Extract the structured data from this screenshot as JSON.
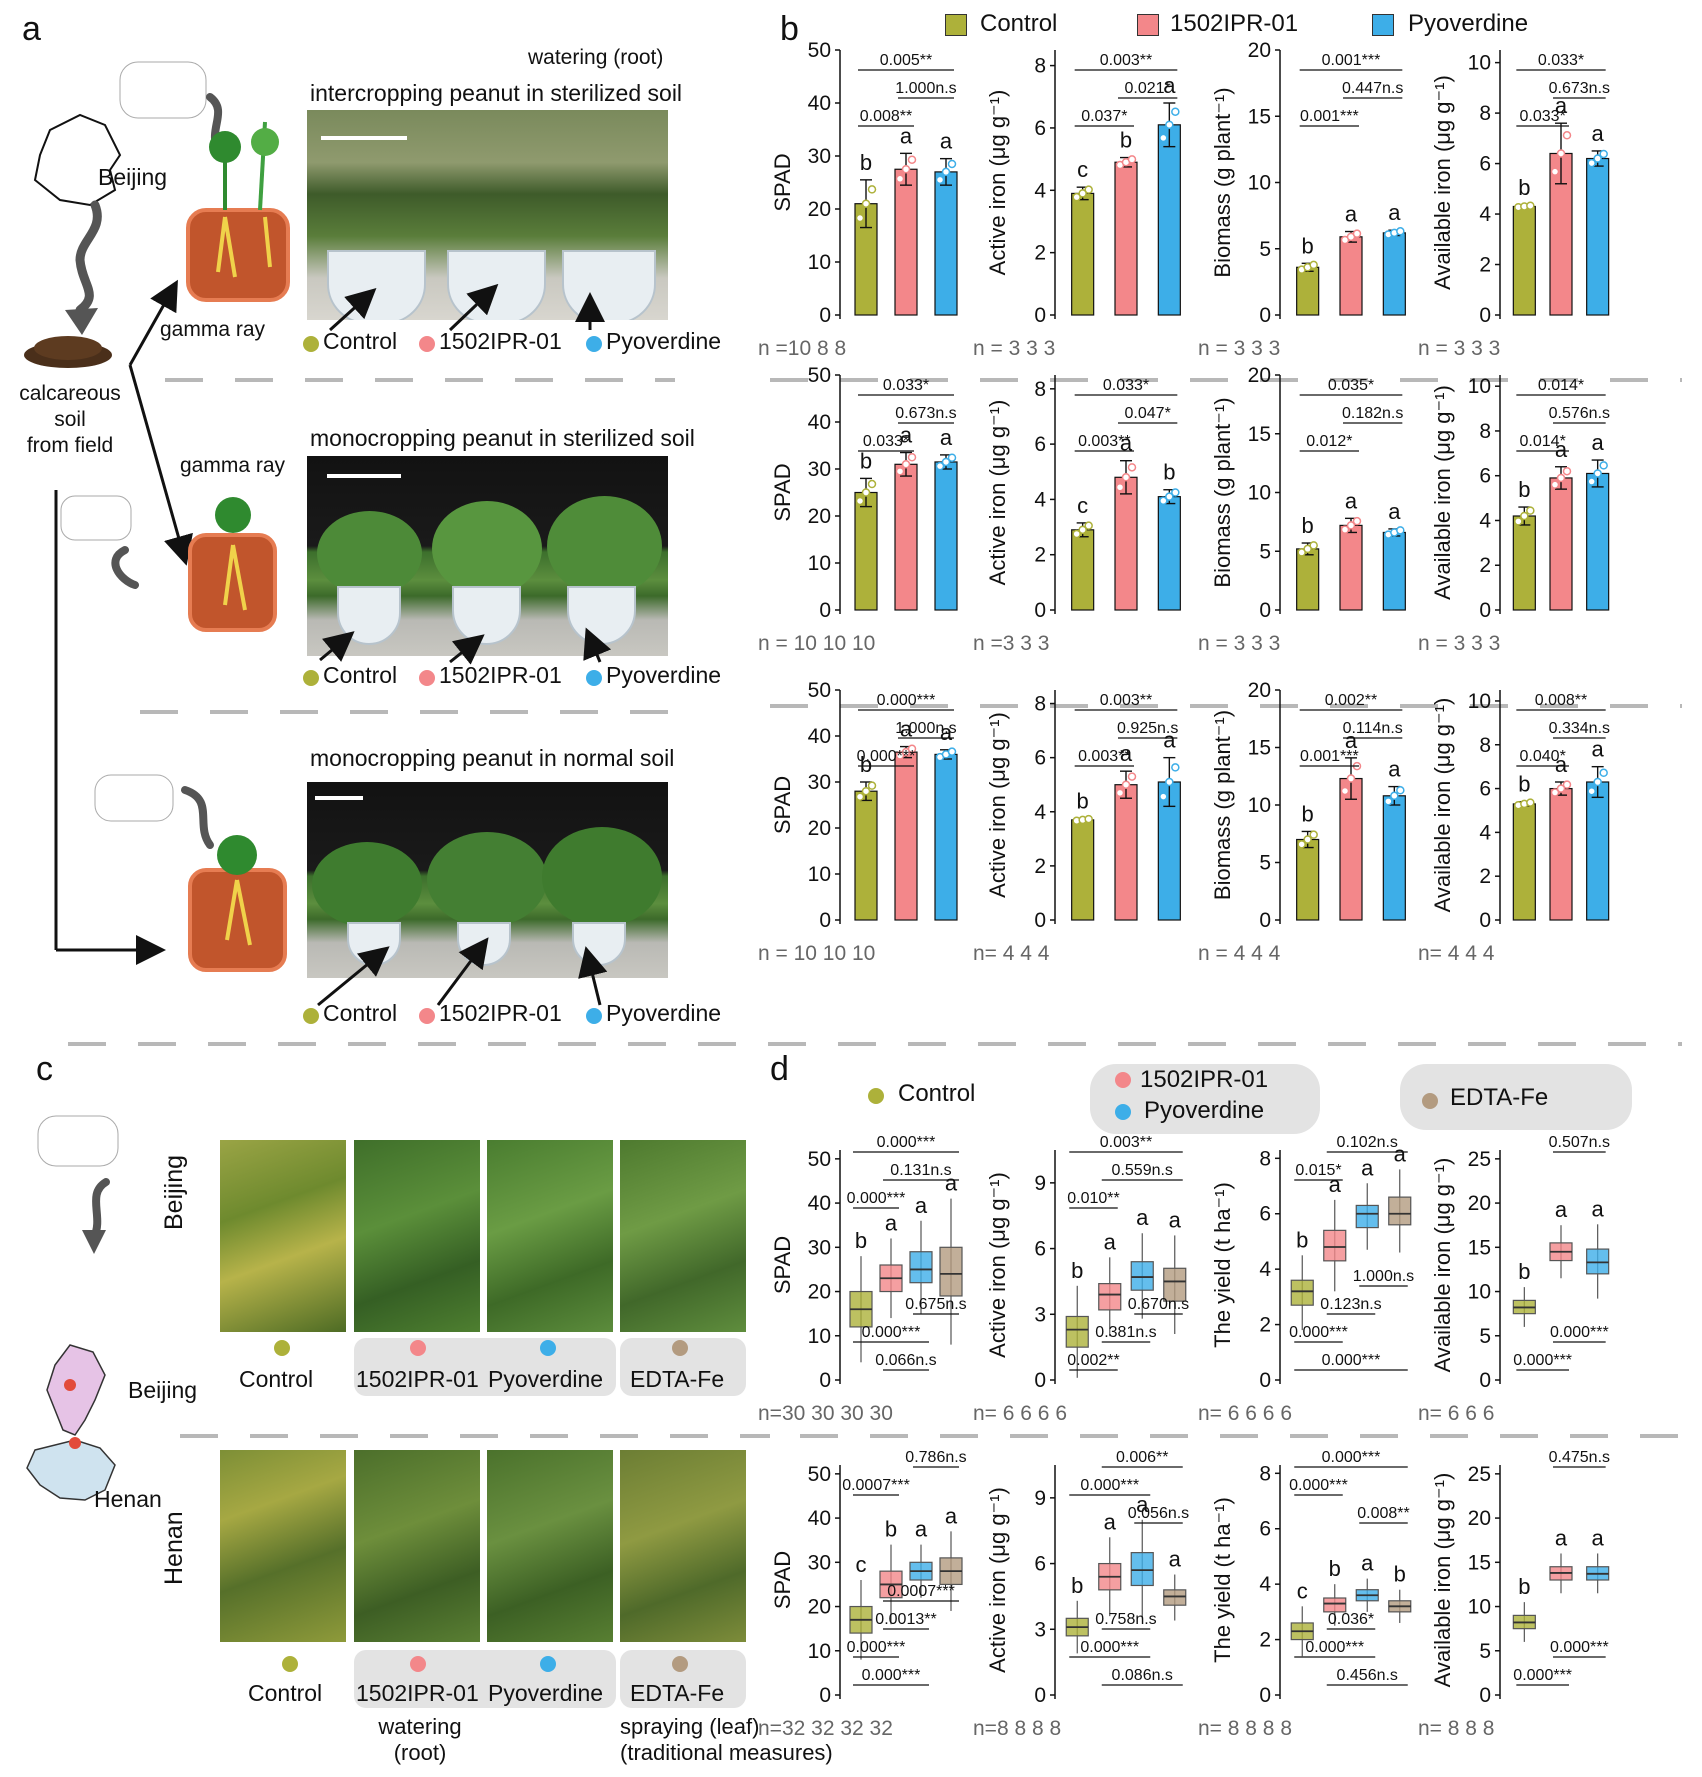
{
  "panel_labels": {
    "a": "a",
    "b": "b",
    "c": "c",
    "d": "d"
  },
  "colors": {
    "control": "#adb13a",
    "ipr": "#f3878a",
    "pyo": "#3daee8",
    "edta": "#b39b80",
    "soil": "#c1552c",
    "pot_border": "#e67c52"
  },
  "panel_a": {
    "watering_root": "watering (root)",
    "beijing": "Beijing",
    "calcareous": [
      "calcareous",
      "soil",
      "from field"
    ],
    "gamma_ray_1": "gamma ray",
    "gamma_ray_2": "gamma ray",
    "row1_title": "intercropping peanut in sterilized  soil",
    "row2_title": "monocropping peanut in sterilized soil",
    "row3_title": "monocropping peanut in normal soil",
    "labels": {
      "control": "Control",
      "ipr": "1502IPR-01",
      "pyo": "Pyoverdine"
    }
  },
  "panel_b_legend": {
    "control": "Control",
    "ipr": "1502IPR-01",
    "pyo": "Pyoverdine"
  },
  "panel_c": {
    "beijing_row": "Beijing",
    "henan_row": "Henan",
    "map_beijing": "Beijing",
    "map_henan": "Henan",
    "labels": {
      "control": "Control",
      "ipr": "1502IPR-01",
      "pyo": "Pyoverdine",
      "edta": "EDTA-Fe"
    },
    "watering_root": [
      "watering",
      "(root)"
    ],
    "spraying": [
      "spraying (leaf)",
      "(traditional measures)"
    ]
  },
  "panel_d_legend": {
    "control": "Control",
    "ipr": "1502IPR-01",
    "pyo": "Pyoverdine",
    "edta": "EDTA-Fe"
  },
  "chart_data": [
    {
      "id": "b11",
      "type": "bar",
      "ylabel": "SPAD",
      "ticks": [
        0,
        10,
        20,
        30,
        40,
        50
      ],
      "ylim": [
        0,
        50
      ],
      "values": [
        21,
        27.5,
        27
      ],
      "err": [
        4.5,
        3,
        2.5
      ],
      "letters": [
        "b",
        "a",
        "a"
      ],
      "n": "n =10   8    8",
      "pvals": [
        {
          "t": "0.005**",
          "a": 0,
          "b": 2
        },
        {
          "t": "1.000n.s",
          "a": 1,
          "b": 2
        },
        {
          "t": "0.008**",
          "a": 0,
          "b": 1
        }
      ]
    },
    {
      "id": "b12",
      "type": "bar",
      "ylabel": "Active iron (μg g⁻¹)",
      "ticks": [
        0,
        2,
        4,
        6,
        8
      ],
      "ylim": [
        0,
        8.5
      ],
      "values": [
        3.9,
        4.9,
        6.1
      ],
      "err": [
        0.2,
        0.15,
        0.7
      ],
      "letters": [
        "c",
        "b",
        "a"
      ],
      "n": "n = 3    3    3",
      "pvals": [
        {
          "t": "0.003**",
          "a": 0,
          "b": 2
        },
        {
          "t": "0.021*",
          "a": 1,
          "b": 2
        },
        {
          "t": "0.037*",
          "a": 0,
          "b": 1
        }
      ]
    },
    {
      "id": "b13",
      "type": "bar",
      "ylabel": "Biomass (g plant⁻¹)",
      "ticks": [
        0,
        5,
        10,
        15,
        20
      ],
      "ylim": [
        0,
        20
      ],
      "values": [
        3.6,
        5.9,
        6.2
      ],
      "err": [
        0.3,
        0.4,
        0.2
      ],
      "letters": [
        "b",
        "a",
        "a"
      ],
      "n": "n =  3    3    3",
      "pvals": [
        {
          "t": "0.001***",
          "a": 0,
          "b": 2
        },
        {
          "t": "0.447n.s",
          "a": 1,
          "b": 2
        },
        {
          "t": "0.001***",
          "a": 0,
          "b": 1
        }
      ]
    },
    {
      "id": "b14",
      "type": "bar",
      "ylabel": "Available iron (μg g⁻¹)",
      "ticks": [
        0,
        2,
        4,
        6,
        8,
        10
      ],
      "ylim": [
        0,
        10.5
      ],
      "values": [
        4.3,
        6.4,
        6.2
      ],
      "err": [
        0.05,
        1.2,
        0.3
      ],
      "letters": [
        "b",
        "a",
        "a"
      ],
      "n": "n = 3    3    3",
      "pvals": [
        {
          "t": "0.033*",
          "a": 0,
          "b": 2
        },
        {
          "t": "0.673n.s",
          "a": 1,
          "b": 2
        },
        {
          "t": "0.033*",
          "a": 0,
          "b": 1
        }
      ]
    },
    {
      "id": "b21",
      "type": "bar",
      "ylabel": "SPAD",
      "ticks": [
        0,
        10,
        20,
        30,
        40,
        50
      ],
      "ylim": [
        0,
        50
      ],
      "values": [
        25,
        31,
        31.5
      ],
      "err": [
        3,
        2.5,
        1.5
      ],
      "letters": [
        "b",
        "a",
        "a"
      ],
      "n": "n = 10  10  10",
      "pvals": [
        {
          "t": "0.033*",
          "a": 0,
          "b": 2
        },
        {
          "t": "0.673n.s",
          "a": 1,
          "b": 2
        },
        {
          "t": "0.033*",
          "a": 0,
          "b": 1
        }
      ]
    },
    {
      "id": "b22",
      "type": "bar",
      "ylabel": "Active iron (μg g⁻¹)",
      "ticks": [
        0,
        2,
        4,
        6,
        8
      ],
      "ylim": [
        0,
        8.5
      ],
      "values": [
        2.9,
        4.8,
        4.1
      ],
      "err": [
        0.25,
        0.6,
        0.25
      ],
      "letters": [
        "c",
        "a",
        "b"
      ],
      "n": "n =3     3     3",
      "pvals": [
        {
          "t": "0.033*",
          "a": 0,
          "b": 2
        },
        {
          "t": "0.047*",
          "a": 1,
          "b": 2
        },
        {
          "t": "0.003**",
          "a": 0,
          "b": 1
        }
      ]
    },
    {
      "id": "b23",
      "type": "bar",
      "ylabel": "Biomass (g plant⁻¹)",
      "ticks": [
        0,
        5,
        10,
        15,
        20
      ],
      "ylim": [
        0,
        20
      ],
      "values": [
        5.2,
        7.2,
        6.6
      ],
      "err": [
        0.5,
        0.6,
        0.3
      ],
      "letters": [
        "b",
        "a",
        "a"
      ],
      "n": "n =   3    3    3",
      "pvals": [
        {
          "t": "0.035*",
          "a": 0,
          "b": 2
        },
        {
          "t": "0.182n.s",
          "a": 1,
          "b": 2
        },
        {
          "t": "0.012*",
          "a": 0,
          "b": 1
        }
      ]
    },
    {
      "id": "b24",
      "type": "bar",
      "ylabel": "Available iron (μg g⁻¹)",
      "ticks": [
        0,
        2,
        4,
        6,
        8,
        10
      ],
      "ylim": [
        0,
        10.5
      ],
      "values": [
        4.2,
        5.9,
        6.1
      ],
      "err": [
        0.4,
        0.5,
        0.6
      ],
      "letters": [
        "b",
        "a",
        "a"
      ],
      "n": "n = 3    3    3",
      "pvals": [
        {
          "t": "0.014*",
          "a": 0,
          "b": 2
        },
        {
          "t": "0.576n.s",
          "a": 1,
          "b": 2
        },
        {
          "t": "0.014*",
          "a": 0,
          "b": 1
        }
      ]
    },
    {
      "id": "b31",
      "type": "bar",
      "ylabel": "SPAD",
      "ticks": [
        0,
        10,
        20,
        30,
        40,
        50
      ],
      "ylim": [
        0,
        50
      ],
      "values": [
        28,
        36.5,
        36
      ],
      "err": [
        2,
        1.2,
        1
      ],
      "letters": [
        "b",
        "a",
        "a"
      ],
      "n": "n = 10  10  10",
      "pvals": [
        {
          "t": "0.000***",
          "a": 0,
          "b": 2
        },
        {
          "t": "1.000n.s",
          "a": 1,
          "b": 2
        },
        {
          "t": "0.000***",
          "a": 0,
          "b": 1
        }
      ]
    },
    {
      "id": "b32",
      "type": "bar",
      "ylabel": "Active iron (μg g⁻¹)",
      "ticks": [
        0,
        2,
        4,
        6,
        8
      ],
      "ylim": [
        0,
        8.5
      ],
      "values": [
        3.7,
        5,
        5.1
      ],
      "err": [
        0.05,
        0.5,
        0.9
      ],
      "letters": [
        "b",
        "a",
        "a"
      ],
      "n": "n=  4    4    4",
      "pvals": [
        {
          "t": "0.003**",
          "a": 0,
          "b": 2
        },
        {
          "t": "0.925n.s",
          "a": 1,
          "b": 2
        },
        {
          "t": "0.003**",
          "a": 0,
          "b": 1
        }
      ]
    },
    {
      "id": "b33",
      "type": "bar",
      "ylabel": "Biomass (g plant⁻¹)",
      "ticks": [
        0,
        5,
        10,
        15,
        20
      ],
      "ylim": [
        0,
        20
      ],
      "values": [
        7,
        12.3,
        10.8
      ],
      "err": [
        0.7,
        1.8,
        0.8
      ],
      "letters": [
        "b",
        "a",
        "a"
      ],
      "n": "n =  4    4    4",
      "pvals": [
        {
          "t": "0.002**",
          "a": 0,
          "b": 2
        },
        {
          "t": "0.114n.s",
          "a": 1,
          "b": 2
        },
        {
          "t": "0.001***",
          "a": 0,
          "b": 1
        }
      ]
    },
    {
      "id": "b34",
      "type": "bar",
      "ylabel": "Available iron (μg g⁻¹)",
      "ticks": [
        0,
        2,
        4,
        6,
        8,
        10
      ],
      "ylim": [
        0,
        10.5
      ],
      "values": [
        5.3,
        6,
        6.3
      ],
      "err": [
        0.1,
        0.3,
        0.7
      ],
      "letters": [
        "b",
        "a",
        "a"
      ],
      "n": "n= 4    4    4",
      "pvals": [
        {
          "t": "0.008**",
          "a": 0,
          "b": 2
        },
        {
          "t": "0.334n.s",
          "a": 1,
          "b": 2
        },
        {
          "t": "0.040*",
          "a": 0,
          "b": 1
        }
      ]
    },
    {
      "id": "d11",
      "type": "box",
      "ylabel": "SPAD",
      "ticks": [
        0,
        10,
        20,
        30,
        40,
        50
      ],
      "ylim": [
        0,
        52
      ],
      "n": "n=30  30  30  30",
      "boxes": [
        {
          "q1": 12,
          "med": 16,
          "q3": 20
        },
        {
          "q1": 20,
          "med": 23,
          "q3": 26
        },
        {
          "q1": 22,
          "med": 25,
          "q3": 29
        },
        {
          "q1": 19,
          "med": 24,
          "q3": 30
        }
      ],
      "letters": [
        "b",
        "a",
        "a",
        "a"
      ],
      "top": [
        {
          "t": "0.000***",
          "a": 0,
          "b": 3
        },
        {
          "t": "0.131n.s",
          "a": 1,
          "b": 3
        },
        {
          "t": "0.000***",
          "a": 0,
          "b": 1
        }
      ],
      "bottom": [
        {
          "t": "0.675n.s",
          "a": 2,
          "b": 3
        },
        {
          "t": "0.000***",
          "a": 0,
          "b": 2
        },
        {
          "t": "0.066n.s",
          "a": 1,
          "b": 2
        }
      ]
    },
    {
      "id": "d12",
      "type": "box",
      "ylabel": "Active iron (μg g⁻¹)",
      "ticks": [
        0,
        3,
        6,
        9
      ],
      "ylim": [
        0,
        10.5
      ],
      "n": "n=  6    6    6    6",
      "boxes": [
        {
          "q1": 1.5,
          "med": 2.3,
          "q3": 2.9
        },
        {
          "q1": 3.2,
          "med": 3.9,
          "q3": 4.4
        },
        {
          "q1": 4.1,
          "med": 4.7,
          "q3": 5.4
        },
        {
          "q1": 3.6,
          "med": 4.5,
          "q3": 5.1
        }
      ],
      "letters": [
        "b",
        "a",
        "a",
        "a"
      ],
      "top": [
        {
          "t": "0.003**",
          "a": 0,
          "b": 3
        },
        {
          "t": "0.559n.s",
          "a": 1,
          "b": 3
        },
        {
          "t": "0.010**",
          "a": 0,
          "b": 1
        }
      ],
      "bottom": [
        {
          "t": "0.670n.s",
          "a": 2,
          "b": 3
        },
        {
          "t": "0.381n.s",
          "a": 1,
          "b": 2
        },
        {
          "t": "0.002**",
          "a": 0,
          "b": 1
        }
      ]
    },
    {
      "id": "d13",
      "type": "box",
      "ylabel": "The yield (t ha⁻¹)",
      "ticks": [
        0,
        2,
        4,
        6,
        8
      ],
      "ylim": [
        0,
        8.3
      ],
      "n": "n=  6    6    6    6",
      "boxes": [
        {
          "q1": 2.7,
          "med": 3.2,
          "q3": 3.6
        },
        {
          "q1": 4.3,
          "med": 4.8,
          "q3": 5.4
        },
        {
          "q1": 5.5,
          "med": 6.0,
          "q3": 6.3
        },
        {
          "q1": 5.6,
          "med": 6.0,
          "q3": 6.6
        }
      ],
      "letters": [
        "b",
        "a",
        "a",
        "a"
      ],
      "top": [
        {
          "t": "0.102n.s",
          "a": 1,
          "b": 3
        },
        {
          "t": "0.015*",
          "a": 0,
          "b": 1
        }
      ],
      "bottom": [
        {
          "t": "1.000n.s",
          "a": 2,
          "b": 3
        },
        {
          "t": "0.123n.s",
          "a": 1,
          "b": 2
        },
        {
          "t": "0.000***",
          "a": 0,
          "b": 1
        },
        {
          "t": "0.000***",
          "a": 0,
          "b": 3
        }
      ]
    },
    {
      "id": "d14",
      "type": "box",
      "ylabel": "Available iron (μg g⁻¹)",
      "ticks": [
        0,
        5,
        10,
        15,
        20,
        25
      ],
      "ylim": [
        0,
        26
      ],
      "n": "n=  6   6   6",
      "boxes": [
        {
          "q1": 7.5,
          "med": 8.2,
          "q3": 9
        },
        {
          "q1": 13.5,
          "med": 14.5,
          "q3": 15.5
        },
        {
          "q1": 12,
          "med": 13.3,
          "q3": 14.8
        }
      ],
      "letters": [
        "b",
        "a",
        "a"
      ],
      "top": [
        {
          "t": "0.507n.s",
          "a": 1,
          "b": 2
        }
      ],
      "bottom": [
        {
          "t": "0.000***",
          "a": 1,
          "b": 2
        },
        {
          "t": "0.000***",
          "a": 0,
          "b": 1
        }
      ]
    },
    {
      "id": "d21",
      "type": "box",
      "ylabel": "SPAD",
      "ticks": [
        0,
        10,
        20,
        30,
        40,
        50
      ],
      "ylim": [
        0,
        52
      ],
      "n": "n=32  32  32  32",
      "boxes": [
        {
          "q1": 14,
          "med": 17,
          "q3": 20
        },
        {
          "q1": 22,
          "med": 25,
          "q3": 28
        },
        {
          "q1": 26,
          "med": 28,
          "q3": 30
        },
        {
          "q1": 25,
          "med": 28,
          "q3": 31
        }
      ],
      "letters": [
        "c",
        "b",
        "a",
        "a"
      ],
      "top": [
        {
          "t": "0.786n.s",
          "a": 2,
          "b": 3
        },
        {
          "t": "0.0007***",
          "a": 0,
          "b": 1
        }
      ],
      "bottom": [
        {
          "t": "0.0007***",
          "a": 1,
          "b": 3
        },
        {
          "t": "0.0013**",
          "a": 1,
          "b": 2
        },
        {
          "t": "0.000***",
          "a": 0,
          "b": 1
        },
        {
          "t": "0.000***",
          "a": 0,
          "b": 2
        }
      ]
    },
    {
      "id": "d22",
      "type": "box",
      "ylabel": "Active iron (μg g⁻¹)",
      "ticks": [
        0,
        3,
        6,
        9
      ],
      "ylim": [
        0,
        10.5
      ],
      "n": "n=8    8    8    8",
      "boxes": [
        {
          "q1": 2.7,
          "med": 3.1,
          "q3": 3.5
        },
        {
          "q1": 4.8,
          "med": 5.4,
          "q3": 6.0
        },
        {
          "q1": 5,
          "med": 5.7,
          "q3": 6.5
        },
        {
          "q1": 4.1,
          "med": 4.5,
          "q3": 4.8
        }
      ],
      "letters": [
        "b",
        "a",
        "a",
        "a"
      ],
      "top": [
        {
          "t": "0.006**",
          "a": 1,
          "b": 3
        },
        {
          "t": "0.000***",
          "a": 0,
          "b": 2
        },
        {
          "t": "0.056n.s",
          "a": 2,
          "b": 3
        }
      ],
      "bottom": [
        {
          "t": "0.758n.s",
          "a": 1,
          "b": 2
        },
        {
          "t": "0.000***",
          "a": 0,
          "b": 2
        },
        {
          "t": "0.086n.s",
          "a": 1,
          "b": 3
        }
      ]
    },
    {
      "id": "d23",
      "type": "box",
      "ylabel": "The yield (t ha⁻¹)",
      "ticks": [
        0,
        2,
        4,
        6,
        8
      ],
      "ylim": [
        0,
        8.3
      ],
      "n": "n=  8    8    8    8",
      "boxes": [
        {
          "q1": 2,
          "med": 2.3,
          "q3": 2.6
        },
        {
          "q1": 3,
          "med": 3.3,
          "q3": 3.5
        },
        {
          "q1": 3.4,
          "med": 3.6,
          "q3": 3.8
        },
        {
          "q1": 3,
          "med": 3.2,
          "q3": 3.4
        }
      ],
      "letters": [
        "c",
        "b",
        "a",
        "b"
      ],
      "top": [
        {
          "t": "0.000***",
          "a": 0,
          "b": 3
        },
        {
          "t": "0.000***",
          "a": 0,
          "b": 1
        },
        {
          "t": "0.008**",
          "a": 2,
          "b": 3
        }
      ],
      "bottom": [
        {
          "t": "0.036*",
          "a": 1,
          "b": 2
        },
        {
          "t": "0.000***",
          "a": 0,
          "b": 2
        },
        {
          "t": "0.456n.s",
          "a": 1,
          "b": 3
        }
      ]
    },
    {
      "id": "d24",
      "type": "box",
      "ylabel": "Available iron (μg g⁻¹)",
      "ticks": [
        0,
        5,
        10,
        15,
        20,
        25
      ],
      "ylim": [
        0,
        26
      ],
      "n": "n=  8   8   8",
      "boxes": [
        {
          "q1": 7.5,
          "med": 8.2,
          "q3": 9
        },
        {
          "q1": 13,
          "med": 13.8,
          "q3": 14.5
        },
        {
          "q1": 13,
          "med": 13.7,
          "q3": 14.5
        }
      ],
      "letters": [
        "b",
        "a",
        "a"
      ],
      "top": [
        {
          "t": "0.475n.s",
          "a": 1,
          "b": 2
        }
      ],
      "bottom": [
        {
          "t": "0.000***",
          "a": 1,
          "b": 2
        },
        {
          "t": "0.000***",
          "a": 0,
          "b": 1
        }
      ]
    }
  ]
}
